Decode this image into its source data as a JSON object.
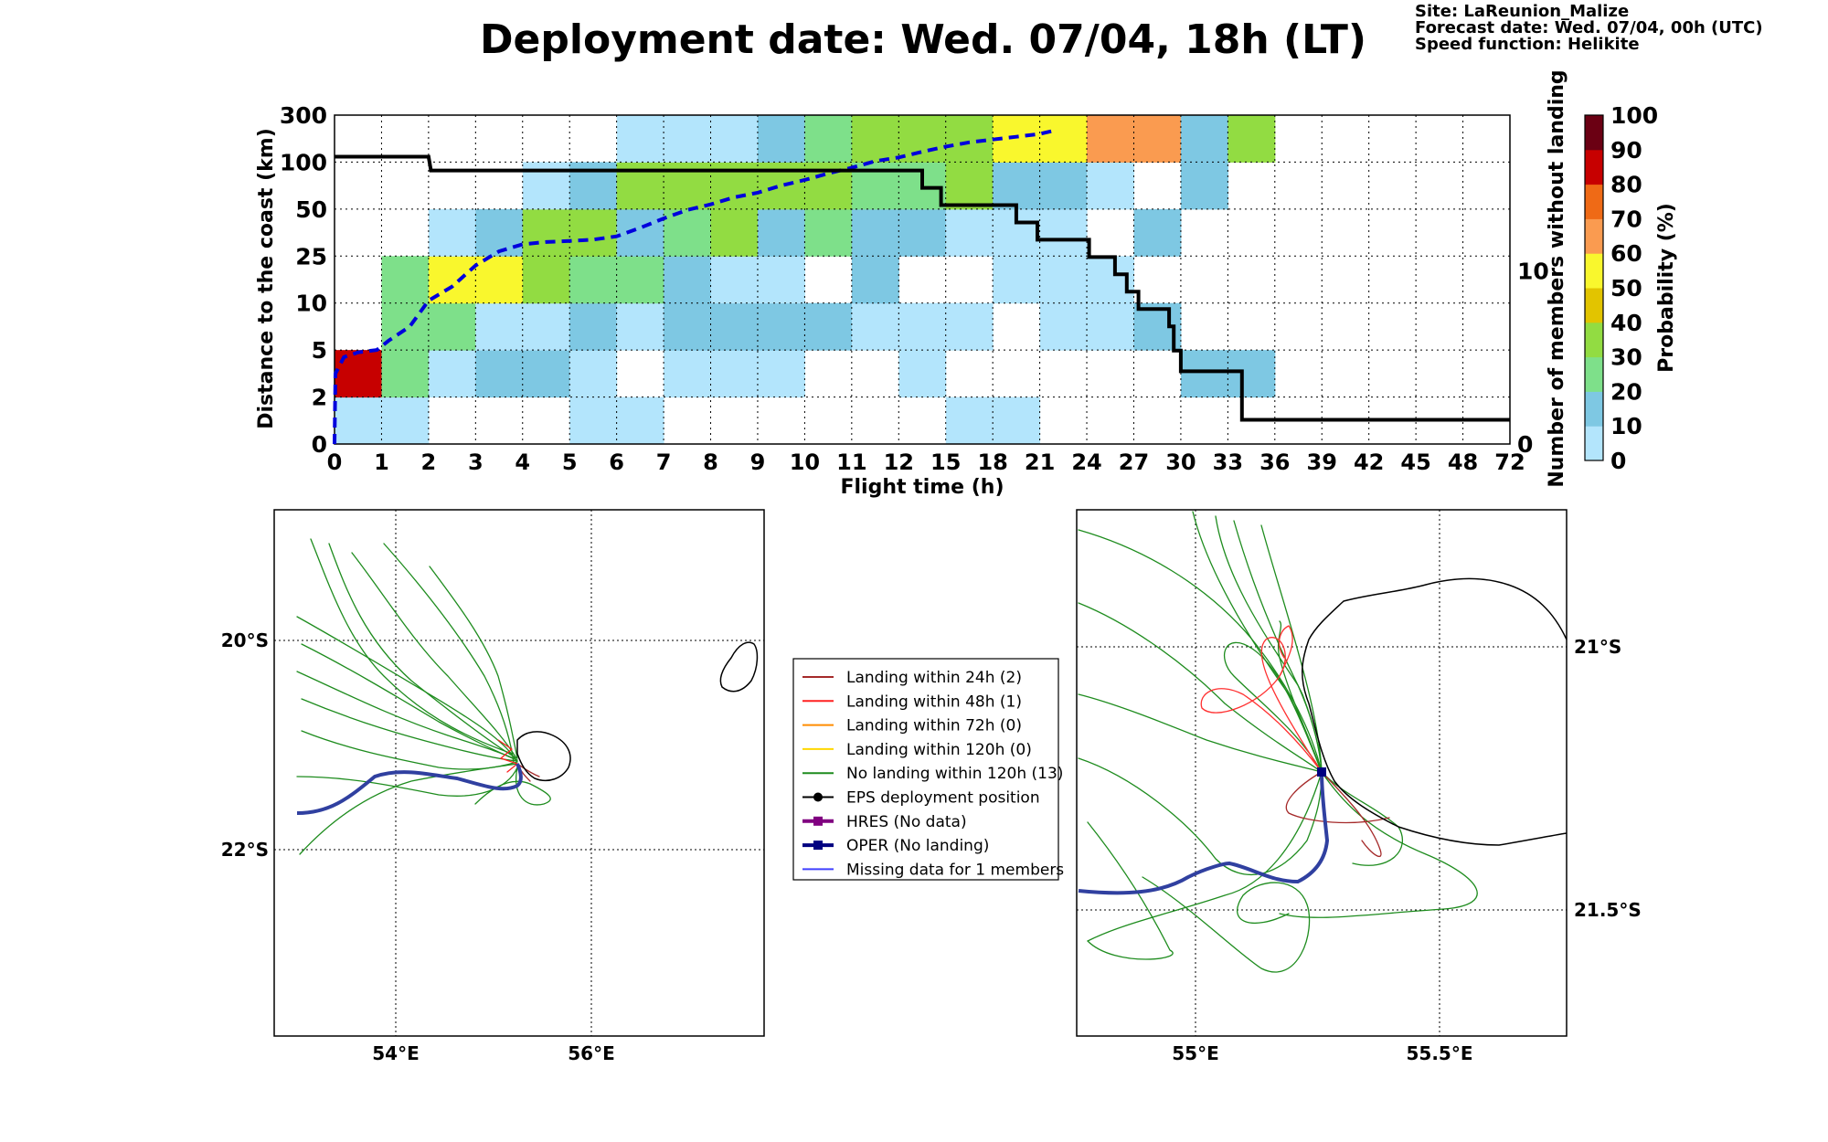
{
  "title": "Deployment date: Wed. 07/04, 18h (LT)",
  "info": {
    "site": "Site: LaReunion_Malize",
    "forecast": "Forecast date: Wed. 07/04, 00h (UTC)",
    "speed": "Speed function: Helikite"
  },
  "colors": {
    "prob_bins": [
      "#b3e5fc",
      "#7ec8e3",
      "#7ee08a",
      "#92dc42",
      "#e2c400",
      "#f9f72d",
      "#fa9b50",
      "#ef6a16",
      "#c70000",
      "#6b0013"
    ],
    "members_line": "#000000",
    "median_line": "#0000dd",
    "land": "#000000",
    "grid": "#000000"
  },
  "chart_data": {
    "type": "heatmap",
    "xlabel": "Flight time (h)",
    "ylabel": "Distance to the coast (km)",
    "y2label": "Number of members without landing",
    "colorbar_label": "Probability (%)",
    "x_tick_labels": [
      "0",
      "1",
      "2",
      "3",
      "4",
      "5",
      "6",
      "7",
      "8",
      "9",
      "10",
      "11",
      "12",
      "15",
      "18",
      "21",
      "24",
      "27",
      "30",
      "33",
      "36",
      "39",
      "42",
      "45",
      "48",
      "72"
    ],
    "y_tick_labels": [
      "0",
      "2",
      "5",
      "10",
      "25",
      "50",
      "100",
      "300"
    ],
    "y2_tick_labels": [
      "0",
      "10"
    ],
    "y2lim": [
      0,
      19
    ],
    "colorbar_ticks": [
      "0",
      "10",
      "20",
      "30",
      "40",
      "50",
      "60",
      "70",
      "80",
      "90",
      "100"
    ],
    "grid": true,
    "cells": [
      {
        "x": 0,
        "y": 0,
        "p": 5
      },
      {
        "x": 1,
        "y": 0,
        "p": 5
      },
      {
        "x": 5,
        "y": 0,
        "p": 5
      },
      {
        "x": 6,
        "y": 0,
        "p": 5
      },
      {
        "x": 13,
        "y": 0,
        "p": 5
      },
      {
        "x": 14,
        "y": 0,
        "p": 5
      },
      {
        "x": 0,
        "y": 1,
        "p": 85
      },
      {
        "x": 1,
        "y": 1,
        "p": 25
      },
      {
        "x": 2,
        "y": 1,
        "p": 5
      },
      {
        "x": 3,
        "y": 1,
        "p": 15
      },
      {
        "x": 4,
        "y": 1,
        "p": 15
      },
      {
        "x": 5,
        "y": 1,
        "p": 5
      },
      {
        "x": 7,
        "y": 1,
        "p": 5
      },
      {
        "x": 8,
        "y": 1,
        "p": 5
      },
      {
        "x": 9,
        "y": 1,
        "p": 5
      },
      {
        "x": 12,
        "y": 1,
        "p": 5
      },
      {
        "x": 18,
        "y": 1,
        "p": 15
      },
      {
        "x": 19,
        "y": 1,
        "p": 15
      },
      {
        "x": 1,
        "y": 2,
        "p": 25
      },
      {
        "x": 2,
        "y": 2,
        "p": 25
      },
      {
        "x": 3,
        "y": 2,
        "p": 5
      },
      {
        "x": 4,
        "y": 2,
        "p": 5
      },
      {
        "x": 5,
        "y": 2,
        "p": 15
      },
      {
        "x": 6,
        "y": 2,
        "p": 5
      },
      {
        "x": 7,
        "y": 2,
        "p": 15
      },
      {
        "x": 8,
        "y": 2,
        "p": 15
      },
      {
        "x": 9,
        "y": 2,
        "p": 15
      },
      {
        "x": 10,
        "y": 2,
        "p": 15
      },
      {
        "x": 11,
        "y": 2,
        "p": 5
      },
      {
        "x": 12,
        "y": 2,
        "p": 5
      },
      {
        "x": 13,
        "y": 2,
        "p": 5
      },
      {
        "x": 15,
        "y": 2,
        "p": 5
      },
      {
        "x": 16,
        "y": 2,
        "p": 5
      },
      {
        "x": 17,
        "y": 2,
        "p": 15
      },
      {
        "x": 1,
        "y": 3,
        "p": 25
      },
      {
        "x": 2,
        "y": 3,
        "p": 55
      },
      {
        "x": 3,
        "y": 3,
        "p": 55
      },
      {
        "x": 4,
        "y": 3,
        "p": 35
      },
      {
        "x": 5,
        "y": 3,
        "p": 25
      },
      {
        "x": 6,
        "y": 3,
        "p": 25
      },
      {
        "x": 7,
        "y": 3,
        "p": 15
      },
      {
        "x": 8,
        "y": 3,
        "p": 5
      },
      {
        "x": 9,
        "y": 3,
        "p": 5
      },
      {
        "x": 11,
        "y": 3,
        "p": 15
      },
      {
        "x": 14,
        "y": 3,
        "p": 5
      },
      {
        "x": 15,
        "y": 3,
        "p": 5
      },
      {
        "x": 16,
        "y": 3,
        "p": 5
      },
      {
        "x": 2,
        "y": 4,
        "p": 5
      },
      {
        "x": 3,
        "y": 4,
        "p": 15
      },
      {
        "x": 4,
        "y": 4,
        "p": 35
      },
      {
        "x": 5,
        "y": 4,
        "p": 35
      },
      {
        "x": 6,
        "y": 4,
        "p": 15
      },
      {
        "x": 7,
        "y": 4,
        "p": 25
      },
      {
        "x": 8,
        "y": 4,
        "p": 35
      },
      {
        "x": 9,
        "y": 4,
        "p": 15
      },
      {
        "x": 10,
        "y": 4,
        "p": 25
      },
      {
        "x": 11,
        "y": 4,
        "p": 15
      },
      {
        "x": 12,
        "y": 4,
        "p": 15
      },
      {
        "x": 13,
        "y": 4,
        "p": 5
      },
      {
        "x": 14,
        "y": 4,
        "p": 5
      },
      {
        "x": 15,
        "y": 4,
        "p": 5
      },
      {
        "x": 17,
        "y": 4,
        "p": 15
      },
      {
        "x": 4,
        "y": 5,
        "p": 5
      },
      {
        "x": 5,
        "y": 5,
        "p": 15
      },
      {
        "x": 6,
        "y": 5,
        "p": 35
      },
      {
        "x": 7,
        "y": 5,
        "p": 35
      },
      {
        "x": 8,
        "y": 5,
        "p": 35
      },
      {
        "x": 9,
        "y": 5,
        "p": 35
      },
      {
        "x": 10,
        "y": 5,
        "p": 35
      },
      {
        "x": 11,
        "y": 5,
        "p": 25
      },
      {
        "x": 12,
        "y": 5,
        "p": 25
      },
      {
        "x": 13,
        "y": 5,
        "p": 35
      },
      {
        "x": 14,
        "y": 5,
        "p": 15
      },
      {
        "x": 15,
        "y": 5,
        "p": 15
      },
      {
        "x": 16,
        "y": 5,
        "p": 5
      },
      {
        "x": 18,
        "y": 5,
        "p": 15
      },
      {
        "x": 6,
        "y": 6,
        "p": 5
      },
      {
        "x": 7,
        "y": 6,
        "p": 5
      },
      {
        "x": 8,
        "y": 6,
        "p": 5
      },
      {
        "x": 9,
        "y": 6,
        "p": 15
      },
      {
        "x": 10,
        "y": 6,
        "p": 25
      },
      {
        "x": 11,
        "y": 6,
        "p": 35
      },
      {
        "x": 12,
        "y": 6,
        "p": 35
      },
      {
        "x": 13,
        "y": 6,
        "p": 35
      },
      {
        "x": 14,
        "y": 6,
        "p": 55
      },
      {
        "x": 15,
        "y": 6,
        "p": 55
      },
      {
        "x": 16,
        "y": 6,
        "p": 65
      },
      {
        "x": 17,
        "y": 6,
        "p": 65
      },
      {
        "x": 18,
        "y": 6,
        "p": 15
      },
      {
        "x": 19,
        "y": 6,
        "p": 35
      }
    ],
    "members_without_landing": [
      {
        "x": 0,
        "y": 16.6
      },
      {
        "x": 2,
        "y": 16.6
      },
      {
        "x": 2.05,
        "y": 15.8
      },
      {
        "x": 12.5,
        "y": 15.8
      },
      {
        "x": 12.5,
        "y": 14.8
      },
      {
        "x": 12.9,
        "y": 14.8
      },
      {
        "x": 12.9,
        "y": 13.8
      },
      {
        "x": 14.5,
        "y": 13.8
      },
      {
        "x": 14.5,
        "y": 12.8
      },
      {
        "x": 14.95,
        "y": 12.8
      },
      {
        "x": 14.95,
        "y": 11.8
      },
      {
        "x": 16.05,
        "y": 11.8
      },
      {
        "x": 16.05,
        "y": 10.8
      },
      {
        "x": 16.6,
        "y": 10.8
      },
      {
        "x": 16.6,
        "y": 9.8
      },
      {
        "x": 16.85,
        "y": 9.8
      },
      {
        "x": 16.85,
        "y": 8.8
      },
      {
        "x": 17.1,
        "y": 8.8
      },
      {
        "x": 17.1,
        "y": 7.8
      },
      {
        "x": 17.75,
        "y": 7.8
      },
      {
        "x": 17.75,
        "y": 6.8
      },
      {
        "x": 17.85,
        "y": 6.8
      },
      {
        "x": 17.85,
        "y": 5.4
      },
      {
        "x": 18,
        "y": 5.4
      },
      {
        "x": 18,
        "y": 4.2
      },
      {
        "x": 19.3,
        "y": 4.2
      },
      {
        "x": 19.3,
        "y": 1.4
      },
      {
        "x": 25,
        "y": 1.4
      }
    ],
    "median_distance": [
      {
        "x": 0,
        "y": 0
      },
      {
        "x": 0.02,
        "y": 1.5
      },
      {
        "x": 0.2,
        "y": 1.85
      },
      {
        "x": 0.5,
        "y": 1.95
      },
      {
        "x": 0.9,
        "y": 2.0
      },
      {
        "x": 1.15,
        "y": 2.2
      },
      {
        "x": 1.6,
        "y": 2.5
      },
      {
        "x": 2.0,
        "y": 3.05
      },
      {
        "x": 2.5,
        "y": 3.35
      },
      {
        "x": 3.0,
        "y": 3.8
      },
      {
        "x": 3.5,
        "y": 4.1
      },
      {
        "x": 4.0,
        "y": 4.25
      },
      {
        "x": 4.5,
        "y": 4.3
      },
      {
        "x": 5.0,
        "y": 4.32
      },
      {
        "x": 5.5,
        "y": 4.35
      },
      {
        "x": 6.0,
        "y": 4.42
      },
      {
        "x": 6.5,
        "y": 4.6
      },
      {
        "x": 7.0,
        "y": 4.8
      },
      {
        "x": 7.5,
        "y": 4.98
      },
      {
        "x": 8.0,
        "y": 5.1
      },
      {
        "x": 8.5,
        "y": 5.25
      },
      {
        "x": 9.0,
        "y": 5.35
      },
      {
        "x": 9.5,
        "y": 5.5
      },
      {
        "x": 10.0,
        "y": 5.62
      },
      {
        "x": 10.5,
        "y": 5.76
      },
      {
        "x": 11.0,
        "y": 5.88
      },
      {
        "x": 11.5,
        "y": 6.02
      },
      {
        "x": 12.0,
        "y": 6.1
      },
      {
        "x": 12.5,
        "y": 6.22
      },
      {
        "x": 13.0,
        "y": 6.33
      },
      {
        "x": 13.5,
        "y": 6.42
      },
      {
        "x": 14.0,
        "y": 6.48
      },
      {
        "x": 14.5,
        "y": 6.54
      },
      {
        "x": 15.0,
        "y": 6.6
      },
      {
        "x": 15.3,
        "y": 6.67
      }
    ]
  },
  "map_left": {
    "lat_labels": [
      "20°S",
      "22°S"
    ],
    "lon_labels": [
      "54°E",
      "56°E"
    ]
  },
  "map_right": {
    "lat_labels": [
      "21°S",
      "21.5°S"
    ],
    "lon_labels": [
      "55°E",
      "55.5°E"
    ]
  },
  "legend": {
    "items": [
      {
        "label": "Landing within 24h (2)",
        "color": "#a52a2a",
        "marker": "none"
      },
      {
        "label": "Landing within 48h (1)",
        "color": "#ff2020",
        "marker": "none"
      },
      {
        "label": "Landing within 72h (0)",
        "color": "#ff8c00",
        "marker": "none"
      },
      {
        "label": "Landing within 120h (0)",
        "color": "#ffd700",
        "marker": "none"
      },
      {
        "label": "No landing within 120h (13)",
        "color": "#1e8c1e",
        "marker": "none"
      },
      {
        "label": "EPS deployment position",
        "color": "#000000",
        "marker": "dot"
      },
      {
        "label": "HRES (No data)",
        "color": "#800080",
        "marker": "square"
      },
      {
        "label": "OPER (No landing)",
        "color": "#000080",
        "marker": "square"
      },
      {
        "label": "Missing data for 1 members",
        "color": "#4040ff",
        "marker": "none"
      }
    ]
  }
}
